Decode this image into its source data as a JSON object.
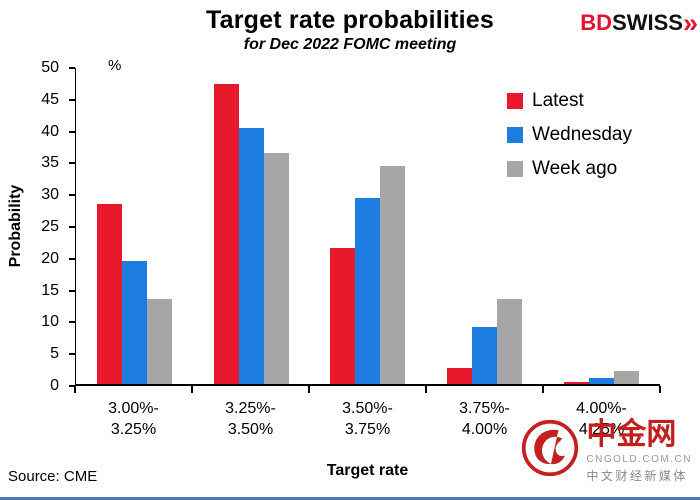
{
  "header": {
    "title": "Target rate probabilities",
    "subtitle": "for Dec 2022 FOMC meeting"
  },
  "logo": {
    "bd": "BD",
    "swiss": "SWISS",
    "chevrons": "»"
  },
  "chart_data": {
    "type": "bar",
    "title": "Target rate probabilities",
    "subtitle": "for Dec 2022 FOMC meeting",
    "unit_label": "%",
    "ylabel": "Probability",
    "xlabel": "Target rate",
    "ylim": [
      0,
      50
    ],
    "ytick_step": 5,
    "grid": false,
    "legend_position": "top-right-inside",
    "categories": [
      {
        "line1": "3.00%-",
        "line2": "3.25%"
      },
      {
        "line1": "3.25%-",
        "line2": "3.50%"
      },
      {
        "line1": "3.50%-",
        "line2": "3.75%"
      },
      {
        "line1": "3.75%-",
        "line2": "4.00%"
      },
      {
        "line1": "4.00%-",
        "line2": "4.25%"
      }
    ],
    "series": [
      {
        "name": "Latest",
        "color": "#e8192c",
        "values": [
          28.5,
          47.5,
          21.5,
          2.5,
          0.3
        ]
      },
      {
        "name": "Wednesday",
        "color": "#1c7ce0",
        "values": [
          19.5,
          40.5,
          29.5,
          9.0,
          1.0
        ]
      },
      {
        "name": "Week ago",
        "color": "#a6a6a6",
        "values": [
          13.5,
          36.5,
          34.5,
          13.5,
          2.0
        ]
      }
    ]
  },
  "footer": {
    "source": "Source: CME",
    "xaxis_title": "Target rate"
  },
  "watermark": {
    "name": "中金网",
    "url": "CNGOLD.COM.CN",
    "tagline": "中文财经新媒体"
  }
}
